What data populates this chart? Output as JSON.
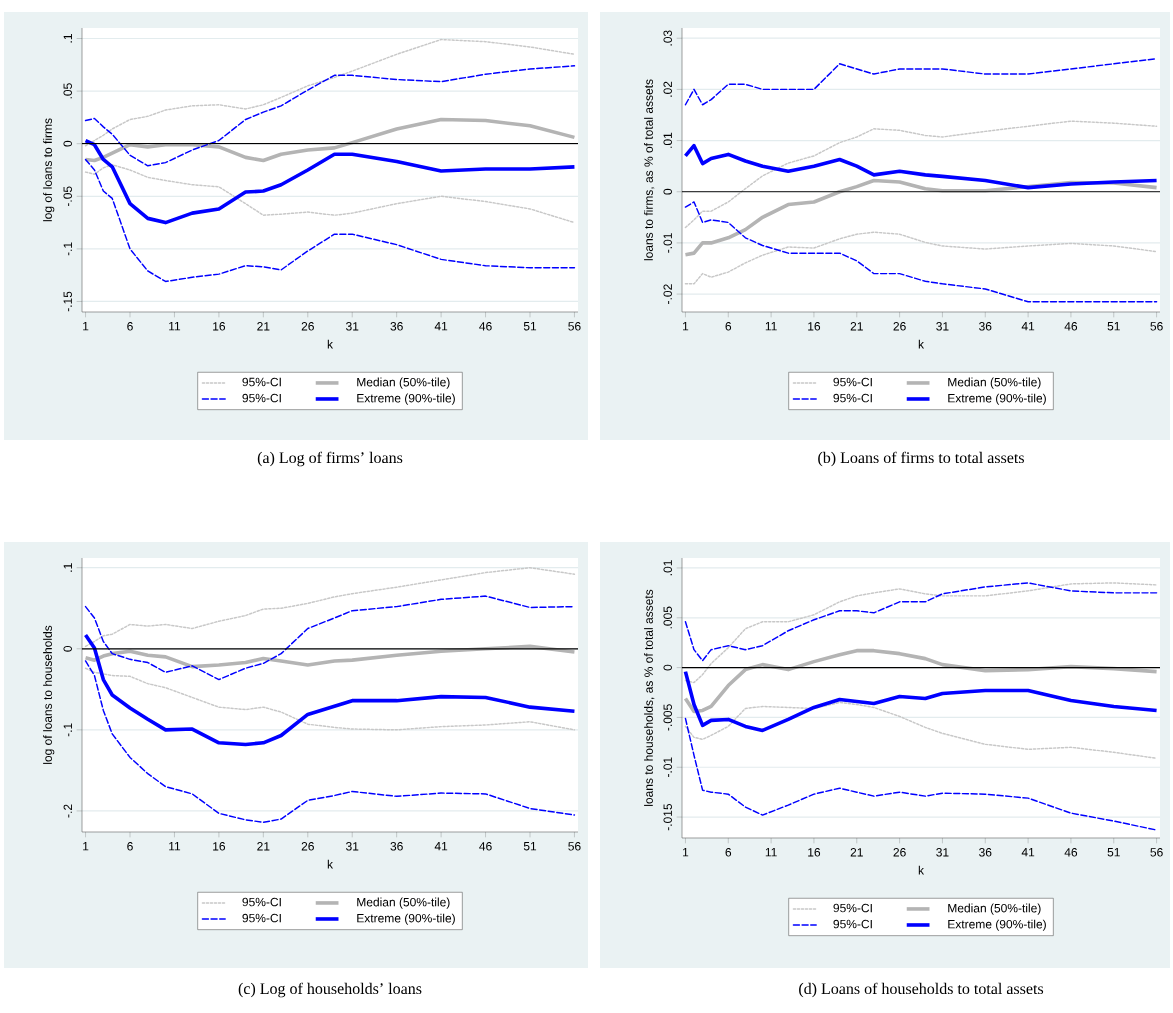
{
  "chart_data": [
    {
      "type": "line",
      "title": "(a) Log of firms’ loans",
      "xlabel": "k",
      "ylabel": "log of loans to firms",
      "grid": "y",
      "legend": "bottom",
      "x": [
        1,
        2,
        3,
        4,
        6,
        8,
        10,
        13,
        16,
        19,
        21,
        23,
        26,
        29,
        31,
        36,
        41,
        46,
        51,
        56
      ],
      "xlim": [
        0.6,
        56.4
      ],
      "xticks": [
        1,
        6,
        11,
        16,
        21,
        26,
        31,
        36,
        41,
        46,
        51,
        56
      ],
      "ylim": [
        -0.16,
        0.11
      ],
      "yticks": [
        {
          "value": 0.1,
          "label": ".1"
        },
        {
          "value": 0.05,
          "label": ".05"
        },
        {
          "value": 0,
          "label": "0"
        },
        {
          "value": -0.05,
          "label": "-.05"
        },
        {
          "value": -0.1,
          "label": "-.1"
        },
        {
          "value": -0.15,
          "label": "-.15"
        }
      ],
      "ref_lines": [
        {
          "axis": "y",
          "value": 0,
          "color": "#000000"
        }
      ],
      "series": [
        {
          "name": "95%-CI",
          "color": "#c8c8c8",
          "line_style": "dotted",
          "values": [
            -0.002,
            0.003,
            0.008,
            0.014,
            0.023,
            0.026,
            0.032,
            0.036,
            0.037,
            0.033,
            0.037,
            0.044,
            0.055,
            0.063,
            0.069,
            0.085,
            0.099,
            0.097,
            0.092,
            0.085
          ]
        },
        {
          "color": "#c8c8c8",
          "line_style": "dotted",
          "values": [
            -0.027,
            -0.029,
            -0.023,
            -0.02,
            -0.025,
            -0.032,
            -0.035,
            -0.039,
            -0.041,
            -0.057,
            -0.068,
            -0.067,
            -0.065,
            -0.068,
            -0.066,
            -0.057,
            -0.05,
            -0.055,
            -0.062,
            -0.075
          ]
        },
        {
          "name": "Median (50%-tile)",
          "color": "#b4b4b4",
          "line_style": "solid",
          "values": [
            -0.015,
            -0.016,
            -0.013,
            -0.009,
            -0.001,
            -0.003,
            -0.001,
            -0.001,
            -0.003,
            -0.013,
            -0.016,
            -0.01,
            -0.006,
            -0.004,
            0.001,
            0.014,
            0.023,
            0.022,
            0.017,
            0.006
          ]
        },
        {
          "name": "95%-CI",
          "color": "#0000ff",
          "line_style": "dashed",
          "values": [
            0.022,
            0.024,
            0.016,
            0.009,
            -0.011,
            -0.021,
            -0.018,
            -0.006,
            0.003,
            0.023,
            0.03,
            0.036,
            0.051,
            0.065,
            0.065,
            0.061,
            0.059,
            0.066,
            0.071,
            0.074
          ]
        },
        {
          "color": "#0000ff",
          "line_style": "dashed",
          "values": [
            -0.015,
            -0.025,
            -0.045,
            -0.052,
            -0.1,
            -0.121,
            -0.131,
            -0.127,
            -0.124,
            -0.116,
            -0.117,
            -0.12,
            -0.102,
            -0.086,
            -0.086,
            -0.096,
            -0.11,
            -0.116,
            -0.118,
            -0.118
          ]
        },
        {
          "name": "Extreme (90%-tile)",
          "color": "#0000ff",
          "line_style": "solid",
          "values": [
            0.003,
            -0.001,
            -0.015,
            -0.022,
            -0.057,
            -0.071,
            -0.075,
            -0.066,
            -0.062,
            -0.046,
            -0.045,
            -0.039,
            -0.025,
            -0.01,
            -0.01,
            -0.017,
            -0.026,
            -0.024,
            -0.024,
            -0.022
          ]
        }
      ]
    },
    {
      "type": "line",
      "title": "(b) Loans of firms to total assets",
      "xlabel": "k",
      "ylabel": "loans to firms, as % of total assets",
      "grid": "y",
      "legend": "bottom",
      "x": [
        1,
        2,
        3,
        4,
        6,
        8,
        10,
        13,
        16,
        19,
        21,
        23,
        26,
        29,
        31,
        36,
        41,
        46,
        51,
        56
      ],
      "xlim": [
        0.6,
        56.4
      ],
      "xticks": [
        1,
        6,
        11,
        16,
        21,
        26,
        31,
        36,
        41,
        46,
        51,
        56
      ],
      "ylim": [
        -0.0235,
        0.032
      ],
      "yticks": [
        {
          "value": 0.03,
          "label": ".03"
        },
        {
          "value": 0.02,
          "label": ".02"
        },
        {
          "value": 0.01,
          "label": ".01"
        },
        {
          "value": 0,
          "label": "0"
        },
        {
          "value": -0.01,
          "label": "-.01"
        },
        {
          "value": -0.02,
          "label": "-.02"
        }
      ],
      "ref_lines": [
        {
          "axis": "y",
          "value": 0,
          "color": "#000000"
        }
      ],
      "series": [
        {
          "name": "95%-CI",
          "color": "#c8c8c8",
          "line_style": "dotted",
          "values": [
            -0.007,
            -0.0055,
            -0.0038,
            -0.0038,
            -0.002,
            0.0006,
            0.0031,
            0.0056,
            0.007,
            0.0096,
            0.0107,
            0.0123,
            0.012,
            0.011,
            0.0107,
            0.0118,
            0.0128,
            0.0138,
            0.0134,
            0.0128
          ]
        },
        {
          "color": "#c8c8c8",
          "line_style": "dotted",
          "values": [
            -0.018,
            -0.018,
            -0.016,
            -0.0167,
            -0.0157,
            -0.0139,
            -0.0124,
            -0.0108,
            -0.011,
            -0.0092,
            -0.0083,
            -0.0079,
            -0.0083,
            -0.0099,
            -0.0106,
            -0.0112,
            -0.0106,
            -0.0101,
            -0.0106,
            -0.0117
          ]
        },
        {
          "name": "Median (50%-tile)",
          "color": "#b4b4b4",
          "line_style": "solid",
          "values": [
            -0.0123,
            -0.012,
            -0.01,
            -0.01,
            -0.009,
            -0.0074,
            -0.005,
            -0.0025,
            -0.002,
            0.0,
            0.001,
            0.0022,
            0.0019,
            0.0006,
            0.0002,
            0.0002,
            0.001,
            0.0018,
            0.0017,
            0.0008
          ]
        },
        {
          "name": "95%-CI",
          "color": "#0000ff",
          "line_style": "dashed",
          "values": [
            0.017,
            0.02,
            0.017,
            0.018,
            0.021,
            0.021,
            0.02,
            0.02,
            0.02,
            0.025,
            0.024,
            0.023,
            0.024,
            0.024,
            0.024,
            0.023,
            0.023,
            0.024,
            0.025,
            0.026
          ]
        },
        {
          "color": "#0000ff",
          "line_style": "dashed",
          "values": [
            -0.003,
            -0.002,
            -0.006,
            -0.0055,
            -0.006,
            -0.009,
            -0.0105,
            -0.012,
            -0.012,
            -0.012,
            -0.0135,
            -0.016,
            -0.016,
            -0.0175,
            -0.018,
            -0.019,
            -0.0215,
            -0.0215,
            -0.0215,
            -0.0215
          ]
        },
        {
          "name": "Extreme (90%-tile)",
          "color": "#0000ff",
          "line_style": "solid",
          "values": [
            0.007,
            0.009,
            0.0055,
            0.0065,
            0.0073,
            0.006,
            0.005,
            0.004,
            0.005,
            0.0063,
            0.005,
            0.0033,
            0.004,
            0.0033,
            0.003,
            0.0022,
            0.0008,
            0.0015,
            0.0019,
            0.0022
          ]
        }
      ]
    },
    {
      "type": "line",
      "title": "(c) Log of households’ loans",
      "xlabel": "k",
      "ylabel": "log of loans to households",
      "grid": "y",
      "legend": "bottom",
      "x": [
        1,
        2,
        3,
        4,
        6,
        8,
        10,
        13,
        16,
        19,
        21,
        23,
        26,
        29,
        31,
        36,
        41,
        46,
        51,
        56
      ],
      "xlim": [
        0.6,
        56.4
      ],
      "xticks": [
        1,
        6,
        11,
        16,
        21,
        26,
        31,
        36,
        41,
        46,
        51,
        56
      ],
      "ylim": [
        -0.226,
        0.112
      ],
      "yticks": [
        {
          "value": 0.1,
          "label": ".1"
        },
        {
          "value": 0,
          "label": "0"
        },
        {
          "value": -0.1,
          "label": "-.1"
        },
        {
          "value": -0.2,
          "label": "-.2"
        }
      ],
      "ref_lines": [
        {
          "axis": "y",
          "value": 0,
          "color": "#000000"
        }
      ],
      "series": [
        {
          "name": "95%-CI",
          "color": "#c8c8c8",
          "line_style": "dotted",
          "values": [
            0.003,
            0.009,
            0.016,
            0.018,
            0.03,
            0.028,
            0.03,
            0.025,
            0.034,
            0.041,
            0.049,
            0.05,
            0.056,
            0.064,
            0.068,
            0.076,
            0.085,
            0.094,
            0.1,
            0.092
          ]
        },
        {
          "color": "#c8c8c8",
          "line_style": "dotted",
          "values": [
            -0.024,
            -0.029,
            -0.031,
            -0.033,
            -0.034,
            -0.043,
            -0.048,
            -0.06,
            -0.072,
            -0.075,
            -0.072,
            -0.078,
            -0.093,
            -0.097,
            -0.099,
            -0.1,
            -0.096,
            -0.094,
            -0.09,
            -0.1
          ]
        },
        {
          "name": "Median (50%-tile)",
          "color": "#b4b4b4",
          "line_style": "solid",
          "values": [
            -0.011,
            -0.014,
            -0.009,
            -0.006,
            -0.003,
            -0.008,
            -0.01,
            -0.022,
            -0.02,
            -0.017,
            -0.012,
            -0.015,
            -0.02,
            -0.015,
            -0.014,
            -0.008,
            -0.003,
            0.0,
            0.003,
            -0.004
          ]
        },
        {
          "name": "95%-CI",
          "color": "#0000ff",
          "line_style": "dashed",
          "values": [
            0.052,
            0.038,
            0.009,
            -0.006,
            -0.013,
            -0.017,
            -0.029,
            -0.021,
            -0.038,
            -0.024,
            -0.018,
            -0.006,
            0.025,
            0.038,
            0.047,
            0.052,
            0.061,
            0.065,
            0.051,
            0.052
          ]
        },
        {
          "color": "#0000ff",
          "line_style": "dashed",
          "values": [
            -0.015,
            -0.033,
            -0.076,
            -0.105,
            -0.134,
            -0.154,
            -0.17,
            -0.179,
            -0.203,
            -0.211,
            -0.214,
            -0.21,
            -0.187,
            -0.181,
            -0.176,
            -0.182,
            -0.178,
            -0.179,
            -0.197,
            -0.205
          ]
        },
        {
          "name": "Extreme (90%-tile)",
          "color": "#0000ff",
          "line_style": "solid",
          "values": [
            0.017,
            0.001,
            -0.038,
            -0.057,
            -0.073,
            -0.087,
            -0.1,
            -0.099,
            -0.116,
            -0.118,
            -0.116,
            -0.107,
            -0.081,
            -0.071,
            -0.064,
            -0.064,
            -0.059,
            -0.06,
            -0.072,
            -0.077
          ]
        }
      ]
    },
    {
      "type": "line",
      "title": "(d) Loans of households to total assets",
      "xlabel": "k",
      "ylabel": "loans to households, as % of total assets",
      "grid": "y",
      "legend": "bottom",
      "x": [
        1,
        2,
        3,
        4,
        6,
        8,
        10,
        13,
        16,
        19,
        21,
        23,
        26,
        29,
        31,
        36,
        41,
        46,
        51,
        56
      ],
      "xlim": [
        0.6,
        56.4
      ],
      "xticks": [
        1,
        6,
        11,
        16,
        21,
        26,
        31,
        36,
        41,
        46,
        51,
        56
      ],
      "ylim": [
        -0.0171,
        0.011
      ],
      "yticks": [
        {
          "value": 0.01,
          "label": ".01"
        },
        {
          "value": 0.005,
          "label": ".005"
        },
        {
          "value": 0,
          "label": "0"
        },
        {
          "value": -0.005,
          "label": "-.005"
        },
        {
          "value": -0.01,
          "label": "-.01"
        },
        {
          "value": -0.015,
          "label": "-.015"
        }
      ],
      "ref_lines": [
        {
          "axis": "y",
          "value": 0,
          "color": "#000000"
        }
      ],
      "series": [
        {
          "name": "95%-CI",
          "color": "#c8c8c8",
          "line_style": "dotted",
          "values": [
            -0.0013,
            -0.0015,
            -0.0007,
            0.0004,
            0.002,
            0.0039,
            0.0046,
            0.0046,
            0.0053,
            0.0066,
            0.0072,
            0.0075,
            0.0079,
            0.0074,
            0.0072,
            0.0072,
            0.0077,
            0.0084,
            0.0085,
            0.0083
          ]
        },
        {
          "color": "#c8c8c8",
          "line_style": "dotted",
          "values": [
            -0.0059,
            -0.007,
            -0.0072,
            -0.0068,
            -0.0059,
            -0.0041,
            -0.0039,
            -0.004,
            -0.0041,
            -0.0035,
            -0.0037,
            -0.004,
            -0.0049,
            -0.006,
            -0.0066,
            -0.0077,
            -0.0082,
            -0.008,
            -0.0085,
            -0.0091
          ]
        },
        {
          "name": "Median (50%-tile)",
          "color": "#b4b4b4",
          "line_style": "solid",
          "values": [
            -0.0031,
            -0.0044,
            -0.0043,
            -0.0039,
            -0.0018,
            -0.0002,
            0.0003,
            -0.0002,
            0.0006,
            0.0013,
            0.0017,
            0.0017,
            0.0014,
            0.0009,
            0.0003,
            -0.0003,
            -0.0002,
            0.0001,
            -0.0001,
            -0.0004
          ]
        },
        {
          "name": "95%-CI",
          "color": "#0000ff",
          "line_style": "dashed",
          "values": [
            0.0046,
            0.0018,
            0.0007,
            0.0018,
            0.0022,
            0.0018,
            0.0022,
            0.0037,
            0.0048,
            0.0057,
            0.0057,
            0.0055,
            0.0066,
            0.0066,
            0.0074,
            0.0081,
            0.0085,
            0.0077,
            0.0075,
            0.0075
          ]
        },
        {
          "color": "#0000ff",
          "line_style": "dashed",
          "values": [
            -0.0051,
            -0.0088,
            -0.0123,
            -0.0125,
            -0.0127,
            -0.014,
            -0.0148,
            -0.0138,
            -0.0127,
            -0.0121,
            -0.0125,
            -0.0129,
            -0.0125,
            -0.0129,
            -0.0126,
            -0.0127,
            -0.0131,
            -0.0146,
            -0.0154,
            -0.0163
          ]
        },
        {
          "name": "Extreme (90%-tile)",
          "color": "#0000ff",
          "line_style": "solid",
          "values": [
            -0.0004,
            -0.0037,
            -0.0058,
            -0.0053,
            -0.0052,
            -0.0059,
            -0.0063,
            -0.0052,
            -0.004,
            -0.0032,
            -0.0034,
            -0.0036,
            -0.0029,
            -0.0031,
            -0.0026,
            -0.0023,
            -0.0023,
            -0.0033,
            -0.0039,
            -0.0043
          ]
        }
      ]
    }
  ]
}
